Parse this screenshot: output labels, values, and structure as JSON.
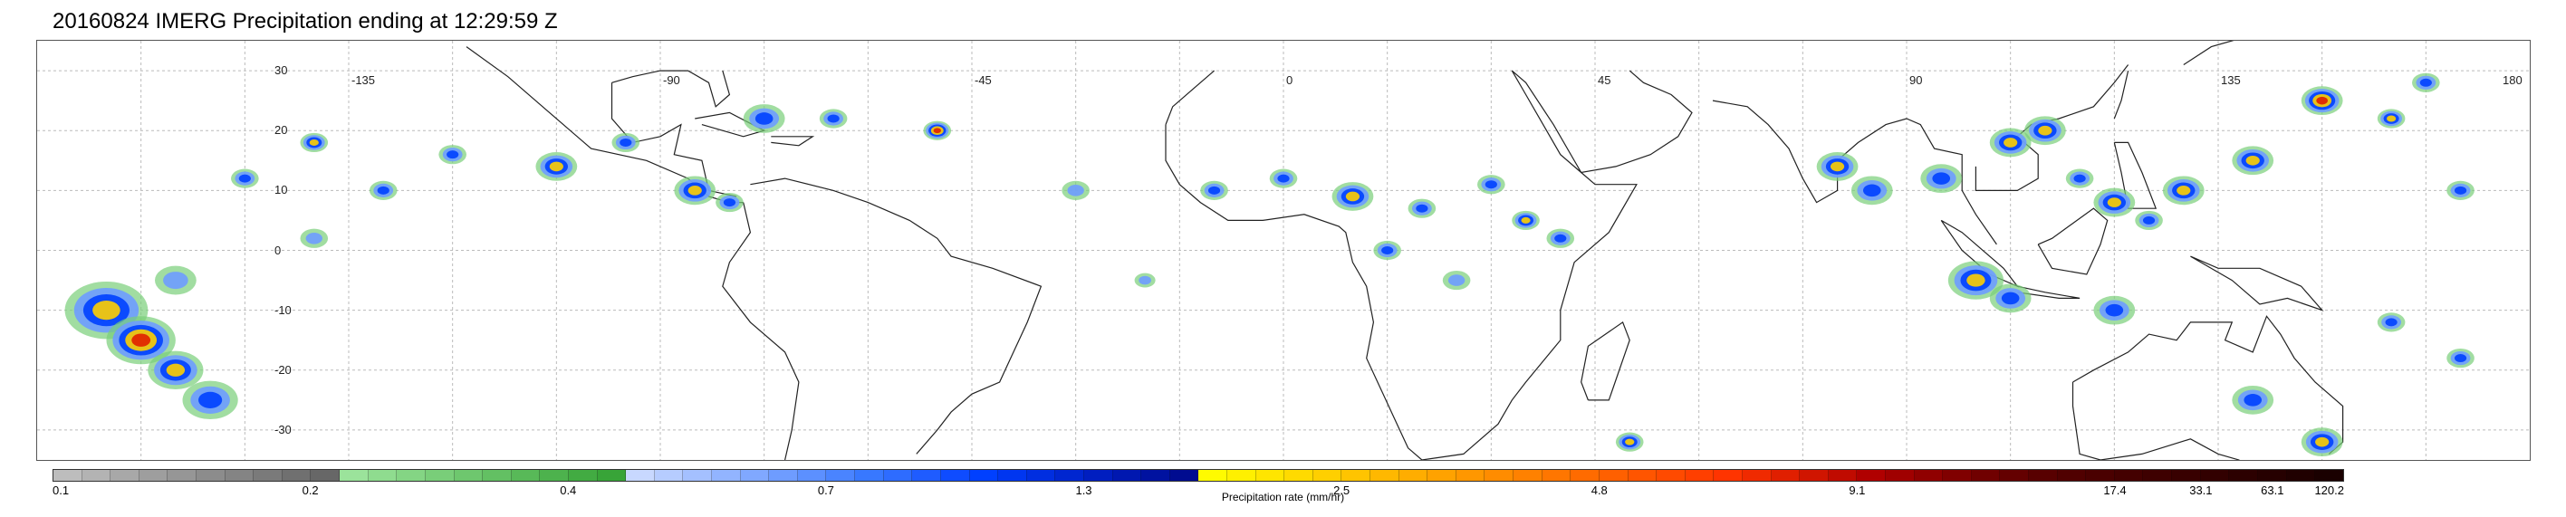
{
  "title": "20160824 IMERG Precipitation ending at 12:29:59 Z",
  "map": {
    "longitude_labels": [
      {
        "text": "-135",
        "lon": -135
      },
      {
        "text": "-90",
        "lon": -90
      },
      {
        "text": "-45",
        "lon": -45
      },
      {
        "text": "0",
        "lon": 0
      },
      {
        "text": "45",
        "lon": 45
      },
      {
        "text": "90",
        "lon": 90
      },
      {
        "text": "135",
        "lon": 135
      },
      {
        "text": "180",
        "lon": 180
      }
    ],
    "latitude_labels": [
      {
        "text": "30",
        "lat": 30
      },
      {
        "text": "20",
        "lat": 20
      },
      {
        "text": "10",
        "lat": 10
      },
      {
        "text": "0",
        "lat": 0
      },
      {
        "text": "-10",
        "lat": -10
      },
      {
        "text": "-20",
        "lat": -20
      },
      {
        "text": "-30",
        "lat": -30
      }
    ],
    "lon_range": [
      -180,
      180
    ],
    "lat_range": [
      -35,
      35
    ],
    "grid": true
  },
  "colorbar": {
    "label": "Precipitation rate (mm/hr)",
    "colors": [
      "#bdbdbd",
      "#b3b3b3",
      "#a8a8a8",
      "#9e9e9e",
      "#969696",
      "#8c8c8c",
      "#848484",
      "#7a7a7a",
      "#707070",
      "#676767",
      "#9be39b",
      "#8fdc8f",
      "#84d584",
      "#79ce79",
      "#6ec76e",
      "#63c063",
      "#58b958",
      "#4db24d",
      "#42ab42",
      "#38a438",
      "#c8d8ff",
      "#b6ccff",
      "#a4c0ff",
      "#92b4ff",
      "#80a8ff",
      "#6e9cff",
      "#5c90ff",
      "#4a84ff",
      "#3878ff",
      "#2e6cff",
      "#1f5cff",
      "#0f4cff",
      "#0040ff",
      "#0036f0",
      "#002ee0",
      "#0026d0",
      "#001ec0",
      "#0018b0",
      "#0012a0",
      "#000c90",
      "#fffb00",
      "#fff000",
      "#ffe500",
      "#ffda00",
      "#ffcf00",
      "#ffc400",
      "#ffb800",
      "#ffad00",
      "#ffa200",
      "#ff9700",
      "#ff8c00",
      "#ff8100",
      "#ff7600",
      "#ff6b00",
      "#ff6000",
      "#ff5500",
      "#ff4a00",
      "#ff3f00",
      "#ff3400",
      "#f02a00",
      "#e01f00",
      "#d01500",
      "#c00b00",
      "#b00000",
      "#a00000",
      "#900000",
      "#800000",
      "#700000",
      "#640000",
      "#580000",
      "#500000",
      "#4a0000",
      "#440000",
      "#3e0000",
      "#380000",
      "#320000",
      "#2c0000",
      "#260000",
      "#200000",
      "#1a0000"
    ],
    "ticks": [
      {
        "text": "0.1",
        "frac": 0.0
      },
      {
        "text": "0.2",
        "frac": 0.1125
      },
      {
        "text": "0.4",
        "frac": 0.225
      },
      {
        "text": "0.7",
        "frac": 0.3375
      },
      {
        "text": "1.3",
        "frac": 0.45
      },
      {
        "text": "2.5",
        "frac": 0.5625
      },
      {
        "text": "4.8",
        "frac": 0.675
      },
      {
        "text": "9.1",
        "frac": 0.7875
      },
      {
        "text": "17.4",
        "frac": 0.9
      },
      {
        "text": "33.1",
        "frac": 0.9375
      },
      {
        "text": "63.1",
        "frac": 0.9687
      },
      {
        "text": "120.2",
        "frac": 1.0
      }
    ]
  }
}
